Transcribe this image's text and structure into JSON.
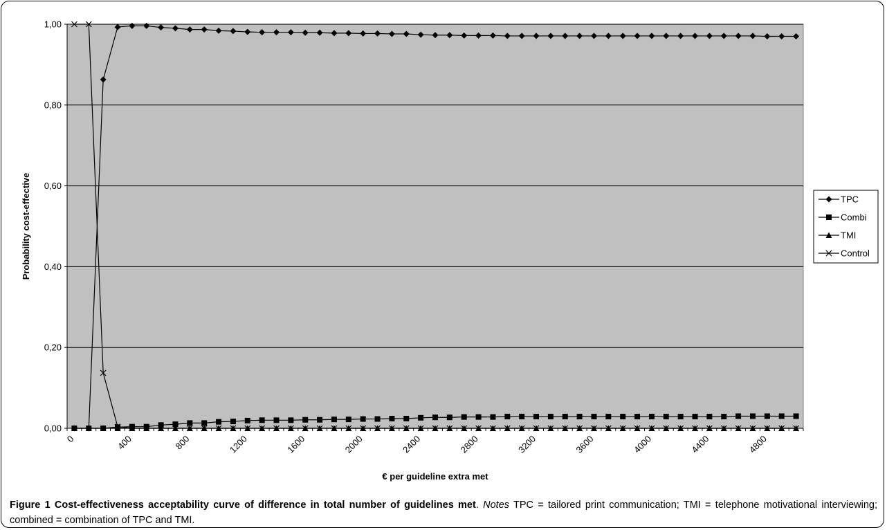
{
  "chart_data": {
    "type": "line",
    "xlabel": "€ per guideline extra met",
    "ylabel": "Probability cost-effective",
    "ylim": [
      0,
      1
    ],
    "y_ticks": [
      "0,00",
      "0,20",
      "0,40",
      "0,60",
      "0,80",
      "1,00"
    ],
    "x_ticks": [
      "0",
      "400",
      "800",
      "1200",
      "1600",
      "2000",
      "2400",
      "2800",
      "3200",
      "3600",
      "4000",
      "4400",
      "4800"
    ],
    "plot_background": "#c0c0c0",
    "grid": true,
    "legend_position": "right",
    "x": [
      0,
      100,
      200,
      300,
      400,
      500,
      600,
      700,
      800,
      900,
      1000,
      1100,
      1200,
      1300,
      1400,
      1500,
      1600,
      1700,
      1800,
      1900,
      2000,
      2100,
      2200,
      2300,
      2400,
      2500,
      2600,
      2700,
      2800,
      2900,
      3000,
      3100,
      3200,
      3300,
      3400,
      3500,
      3600,
      3700,
      3800,
      3900,
      4000,
      4100,
      4200,
      4300,
      4400,
      4500,
      4600,
      4700,
      4800,
      4900,
      5000
    ],
    "series": [
      {
        "name": "TPC",
        "marker": "diamond",
        "values": [
          0,
          0,
          0.863,
          0.993,
          0.996,
          0.996,
          0.992,
          0.99,
          0.987,
          0.987,
          0.984,
          0.983,
          0.981,
          0.98,
          0.98,
          0.98,
          0.979,
          0.979,
          0.978,
          0.978,
          0.977,
          0.977,
          0.976,
          0.976,
          0.974,
          0.973,
          0.973,
          0.972,
          0.972,
          0.972,
          0.971,
          0.971,
          0.971,
          0.971,
          0.971,
          0.971,
          0.971,
          0.971,
          0.971,
          0.971,
          0.971,
          0.971,
          0.971,
          0.971,
          0.971,
          0.971,
          0.971,
          0.971,
          0.97,
          0.97,
          0.97
        ]
      },
      {
        "name": "Combi",
        "marker": "square",
        "values": [
          0,
          0,
          0,
          0.003,
          0.004,
          0.004,
          0.008,
          0.01,
          0.013,
          0.013,
          0.016,
          0.017,
          0.019,
          0.02,
          0.02,
          0.02,
          0.021,
          0.021,
          0.022,
          0.022,
          0.023,
          0.023,
          0.024,
          0.024,
          0.026,
          0.027,
          0.027,
          0.028,
          0.028,
          0.028,
          0.029,
          0.029,
          0.029,
          0.029,
          0.029,
          0.029,
          0.029,
          0.029,
          0.029,
          0.029,
          0.029,
          0.029,
          0.029,
          0.029,
          0.029,
          0.029,
          0.03,
          0.03,
          0.03,
          0.03,
          0.03
        ]
      },
      {
        "name": "TMI",
        "marker": "triangle",
        "values": [
          0,
          0,
          0,
          0,
          0,
          0,
          0,
          0,
          0,
          0,
          0,
          0,
          0,
          0,
          0,
          0,
          0,
          0,
          0,
          0,
          0,
          0,
          0,
          0,
          0,
          0,
          0,
          0,
          0,
          0,
          0,
          0,
          0,
          0,
          0,
          0,
          0,
          0,
          0,
          0,
          0,
          0,
          0,
          0,
          0,
          0,
          0,
          0,
          0,
          0,
          0
        ]
      },
      {
        "name": "Control",
        "marker": "x",
        "values": [
          1,
          1,
          0.137,
          0.004,
          0,
          0,
          0,
          0,
          0,
          0,
          0,
          0,
          0,
          0,
          0,
          0,
          0,
          0,
          0,
          0,
          0,
          0,
          0,
          0,
          0,
          0,
          0,
          0,
          0,
          0,
          0,
          0,
          0,
          0,
          0,
          0,
          0,
          0,
          0,
          0,
          0,
          0,
          0,
          0,
          0,
          0,
          0,
          0,
          0,
          0,
          0
        ]
      }
    ]
  },
  "caption": {
    "figure_label": "Figure 1",
    "title": "Cost-effectiveness acceptability curve of difference in total number of guidelines met",
    "notes_label": "Notes",
    "notes_text": "TPC = tailored print communication; TMI = telephone motivational interviewing; combined = combination of TPC and TMI."
  }
}
